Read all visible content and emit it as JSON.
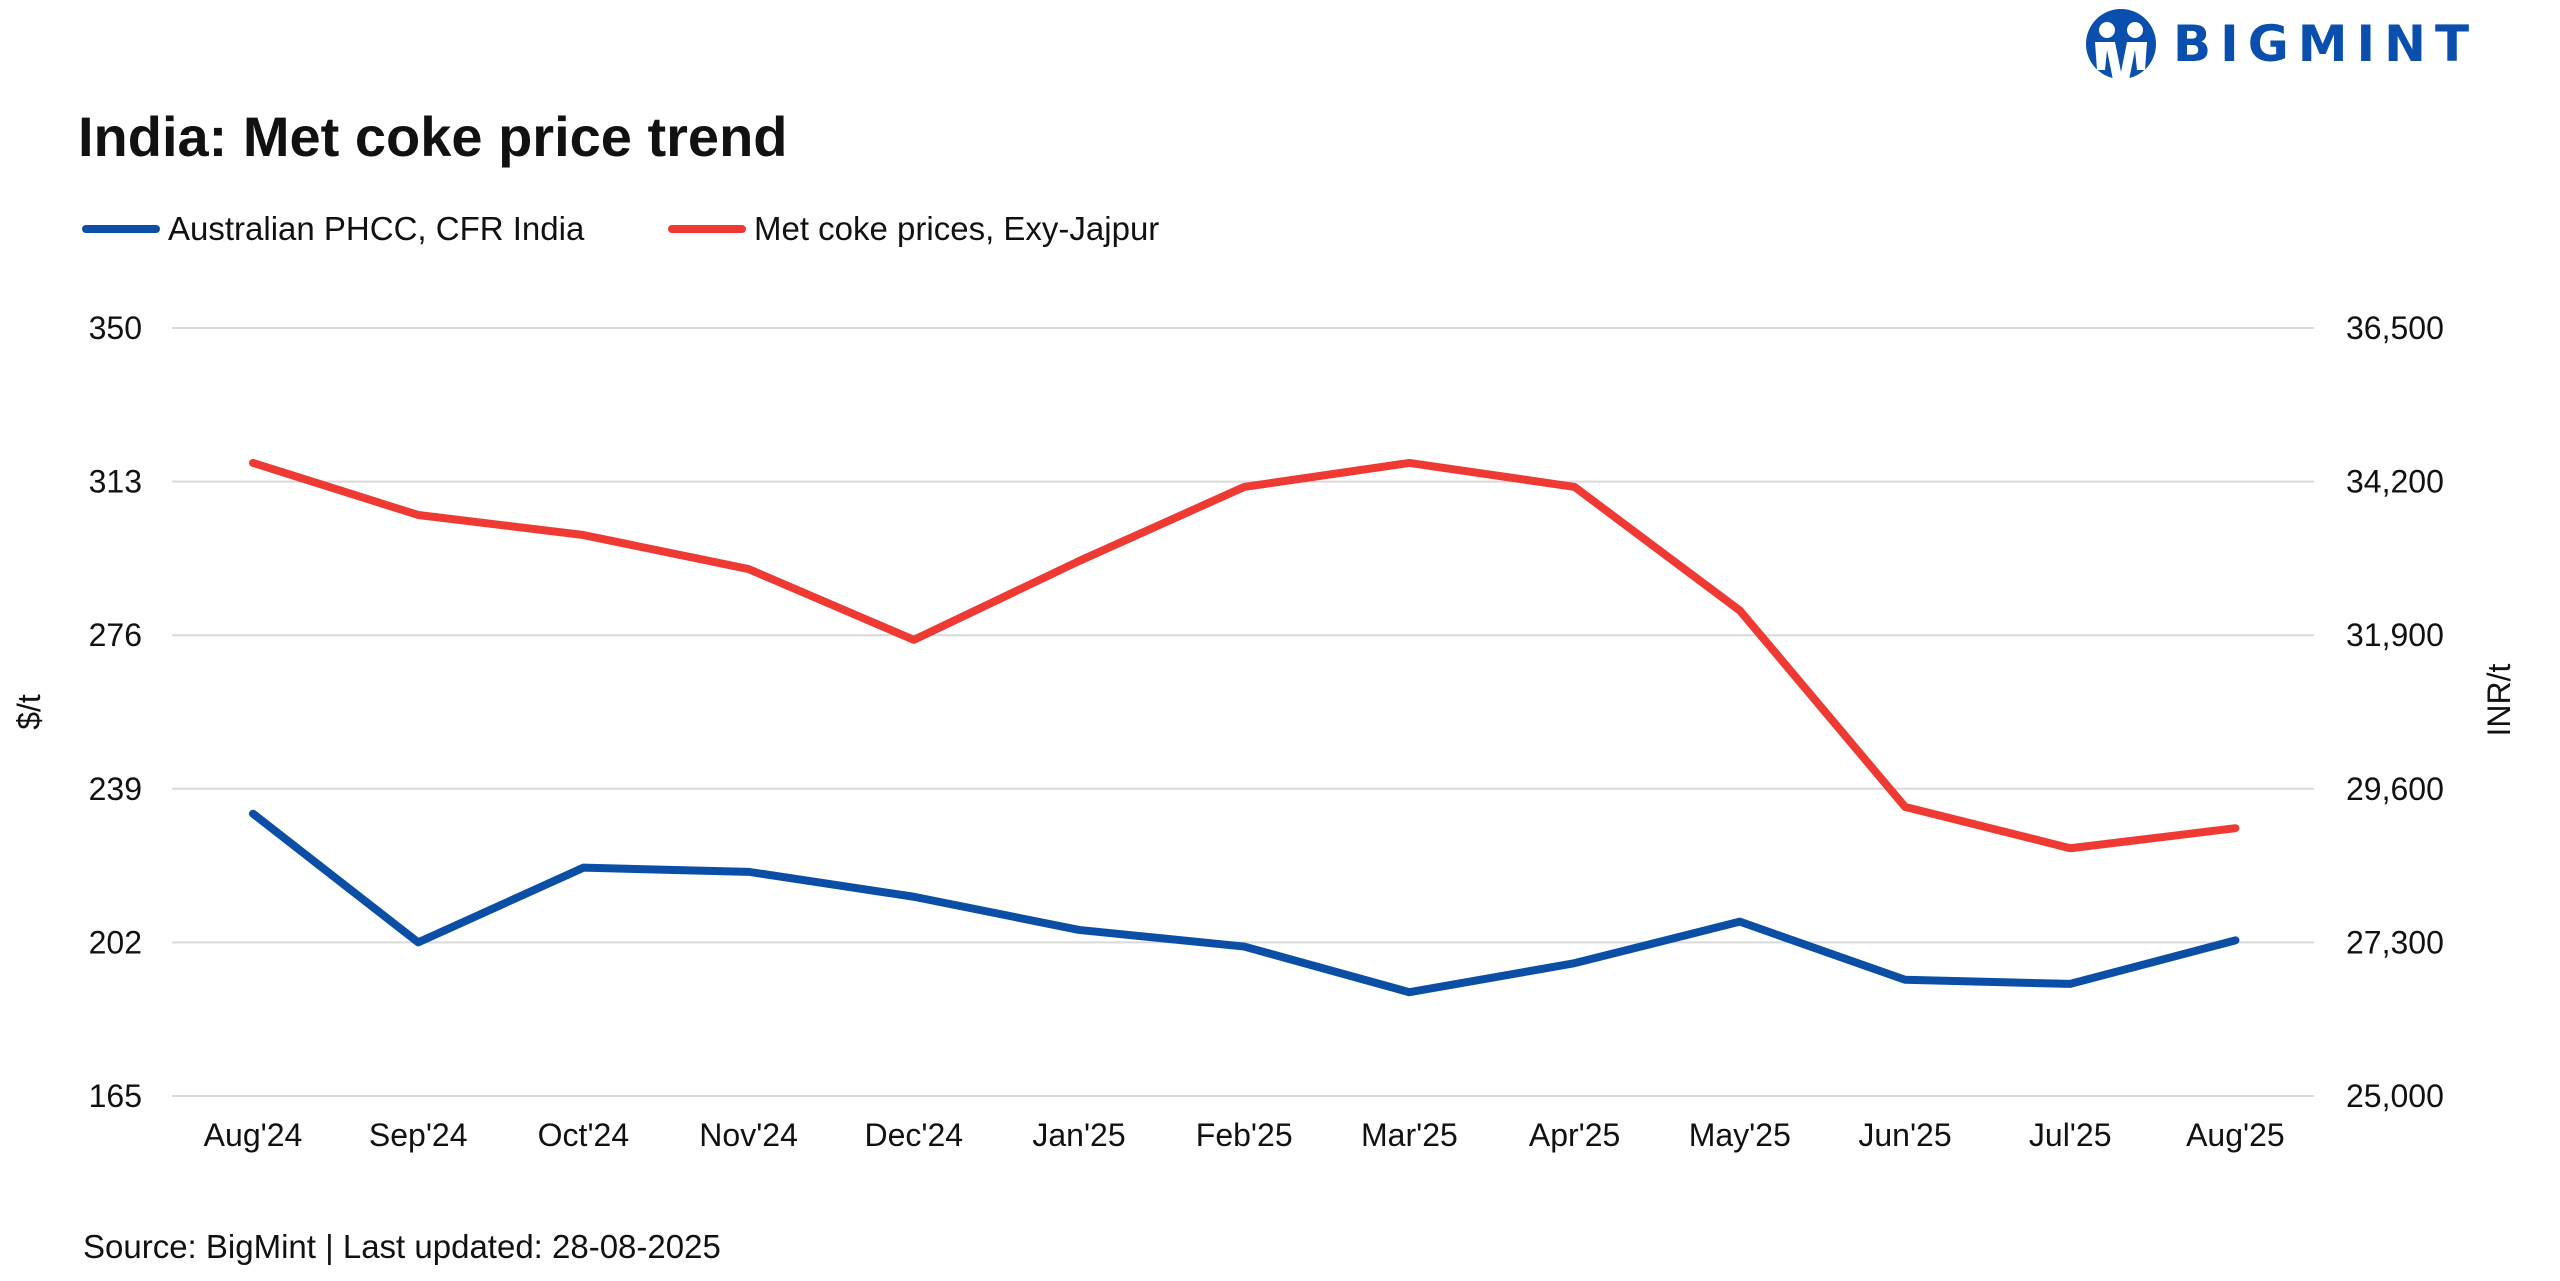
{
  "title": "India: Met coke price trend",
  "logo_text": "BIGMINT",
  "source": "Source: BigMint | Last updated: 28-08-2025",
  "colors": {
    "blue": "#0a4ea6",
    "red": "#ee3a33",
    "grid": "#d9d9d9",
    "brand": "#0a4fae"
  },
  "chart_data": {
    "type": "line",
    "title": "India: Met coke price trend",
    "categories": [
      "Aug'24",
      "Sep'24",
      "Oct'24",
      "Nov'24",
      "Dec'24",
      "Jan'25",
      "Feb'25",
      "Mar'25",
      "Apr'25",
      "May'25",
      "Jun'25",
      "Jul'25",
      "Aug'25"
    ],
    "ylabel_left": "$/t",
    "ylabel_right": "INR/t",
    "ylim_left": [
      165,
      350
    ],
    "ylim_right": [
      25000,
      36500
    ],
    "yticks_left": [
      "350",
      "313",
      "276",
      "239",
      "202",
      "165"
    ],
    "yticks_right": [
      "36,500",
      "34,200",
      "31,900",
      "29,600",
      "27,300",
      "25,000"
    ],
    "grid": true,
    "legend_position": "top-left",
    "series": [
      {
        "name": "Australian PHCC, CFR India",
        "axis": "left",
        "color": "#0a4ea6",
        "values": [
          233,
          202,
          220,
          219,
          213,
          205,
          201,
          190,
          197,
          207,
          193,
          192,
          202.5
        ]
      },
      {
        "name": "Met coke prices, Exy-Jajpur",
        "axis": "right",
        "color": "#ee3a33",
        "values": [
          34480,
          33700,
          33400,
          32890,
          31830,
          33010,
          34120,
          34480,
          34120,
          32270,
          29330,
          28710,
          29010
        ]
      }
    ]
  }
}
